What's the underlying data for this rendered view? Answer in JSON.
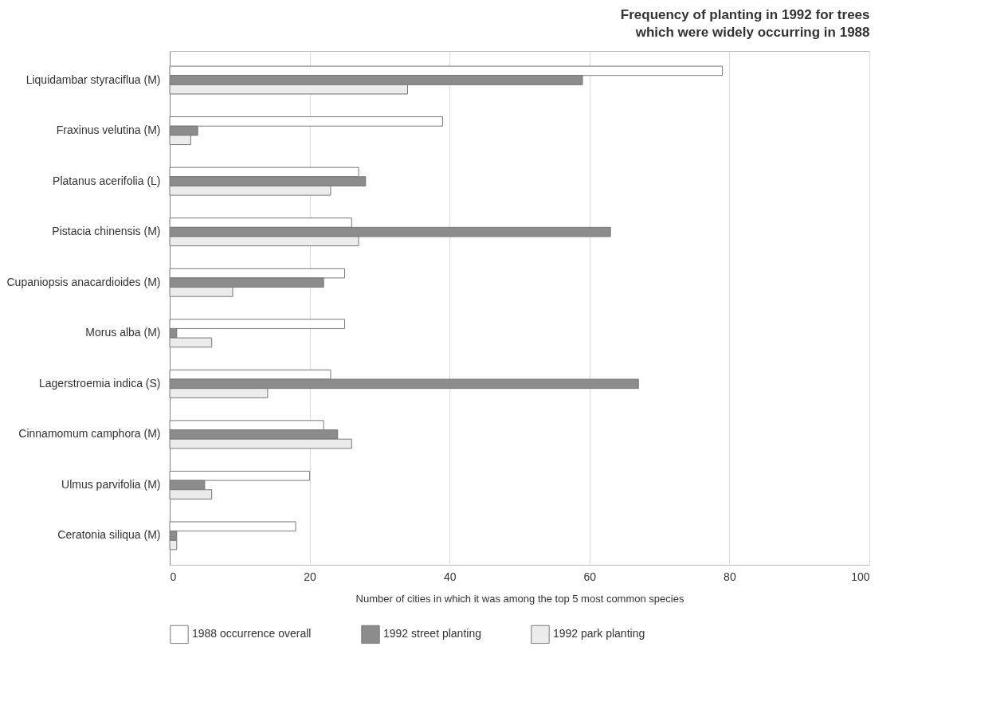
{
  "chart_data": {
    "type": "bar",
    "orientation": "horizontal",
    "title": "Frequency of planting in 1992 for trees\nwhich were widely occurring in 1988",
    "xlabel": "Number of cities in which it was among the top 5 most common species",
    "categories": [
      "Liquidambar styraciflua (M)",
      "Fraxinus velutina (M)",
      "Platanus acerifolia (L)",
      "Pistacia chinensis (M)",
      "Cupaniopsis anacardioides (M)",
      "Morus alba (M)",
      "Lagerstroemia indica (S)",
      "Cinnamomum camphora (M)",
      "Ulmus parvifolia (M)",
      "Ceratonia siliqua (M)"
    ],
    "series": [
      {
        "name": "1988 occurrence overall",
        "color": "#ffffff",
        "values": [
          79,
          39,
          27,
          26,
          25,
          25,
          23,
          22,
          20,
          18
        ]
      },
      {
        "name": "1992 street planting",
        "color": "#8c8c8c",
        "values": [
          59,
          4,
          28,
          63,
          22,
          1,
          67,
          24,
          5,
          1
        ]
      },
      {
        "name": "1992 park planting",
        "color": "#ececec",
        "values": [
          34,
          3,
          23,
          27,
          9,
          6,
          14,
          26,
          6,
          1
        ]
      }
    ],
    "xlim": [
      0,
      100
    ],
    "xticks": [
      0,
      20,
      40,
      60,
      80,
      100
    ],
    "grid": "x",
    "legend": "bottom"
  }
}
